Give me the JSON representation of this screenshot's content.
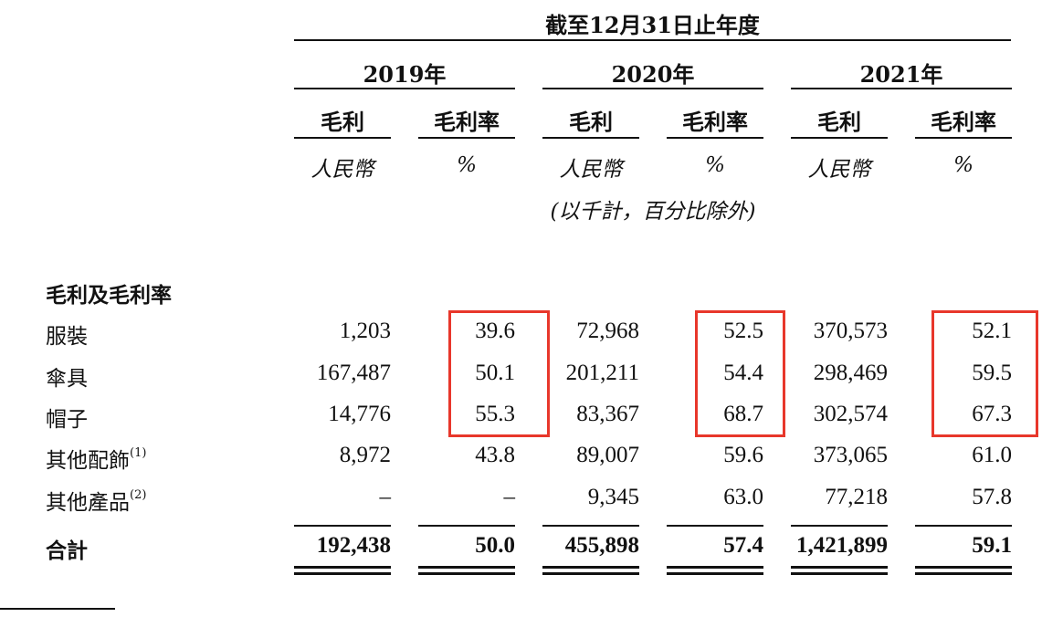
{
  "header": {
    "period_title": "截至12月31日止年度",
    "years": [
      "2019年",
      "2020年",
      "2021年"
    ],
    "col_gross_profit": "毛利",
    "col_margin": "毛利率",
    "unit_currency": "人民幣",
    "unit_percent": "%",
    "unit_note": "(以千計，百分比除外)"
  },
  "section_title": "毛利及毛利率",
  "rows": [
    {
      "label": "服裝",
      "note": "",
      "values": [
        "1,203",
        "39.6",
        "72,968",
        "52.5",
        "370,573",
        "52.1"
      ]
    },
    {
      "label": "傘具",
      "note": "",
      "values": [
        "167,487",
        "50.1",
        "201,211",
        "54.4",
        "298,469",
        "59.5"
      ]
    },
    {
      "label": "帽子",
      "note": "",
      "values": [
        "14,776",
        "55.3",
        "83,367",
        "68.7",
        "302,574",
        "67.3"
      ]
    },
    {
      "label": "其他配飾",
      "note": "(1)",
      "values": [
        "8,972",
        "43.8",
        "89,007",
        "59.6",
        "373,065",
        "61.0"
      ]
    },
    {
      "label": "其他產品",
      "note": "(2)",
      "values": [
        "–",
        "–",
        "9,345",
        "63.0",
        "77,218",
        "57.8"
      ]
    }
  ],
  "total": {
    "label": "合計",
    "values": [
      "192,438",
      "50.0",
      "455,898",
      "57.4",
      "1,421,899",
      "59.1"
    ]
  },
  "highlight_color": "#e8372b"
}
